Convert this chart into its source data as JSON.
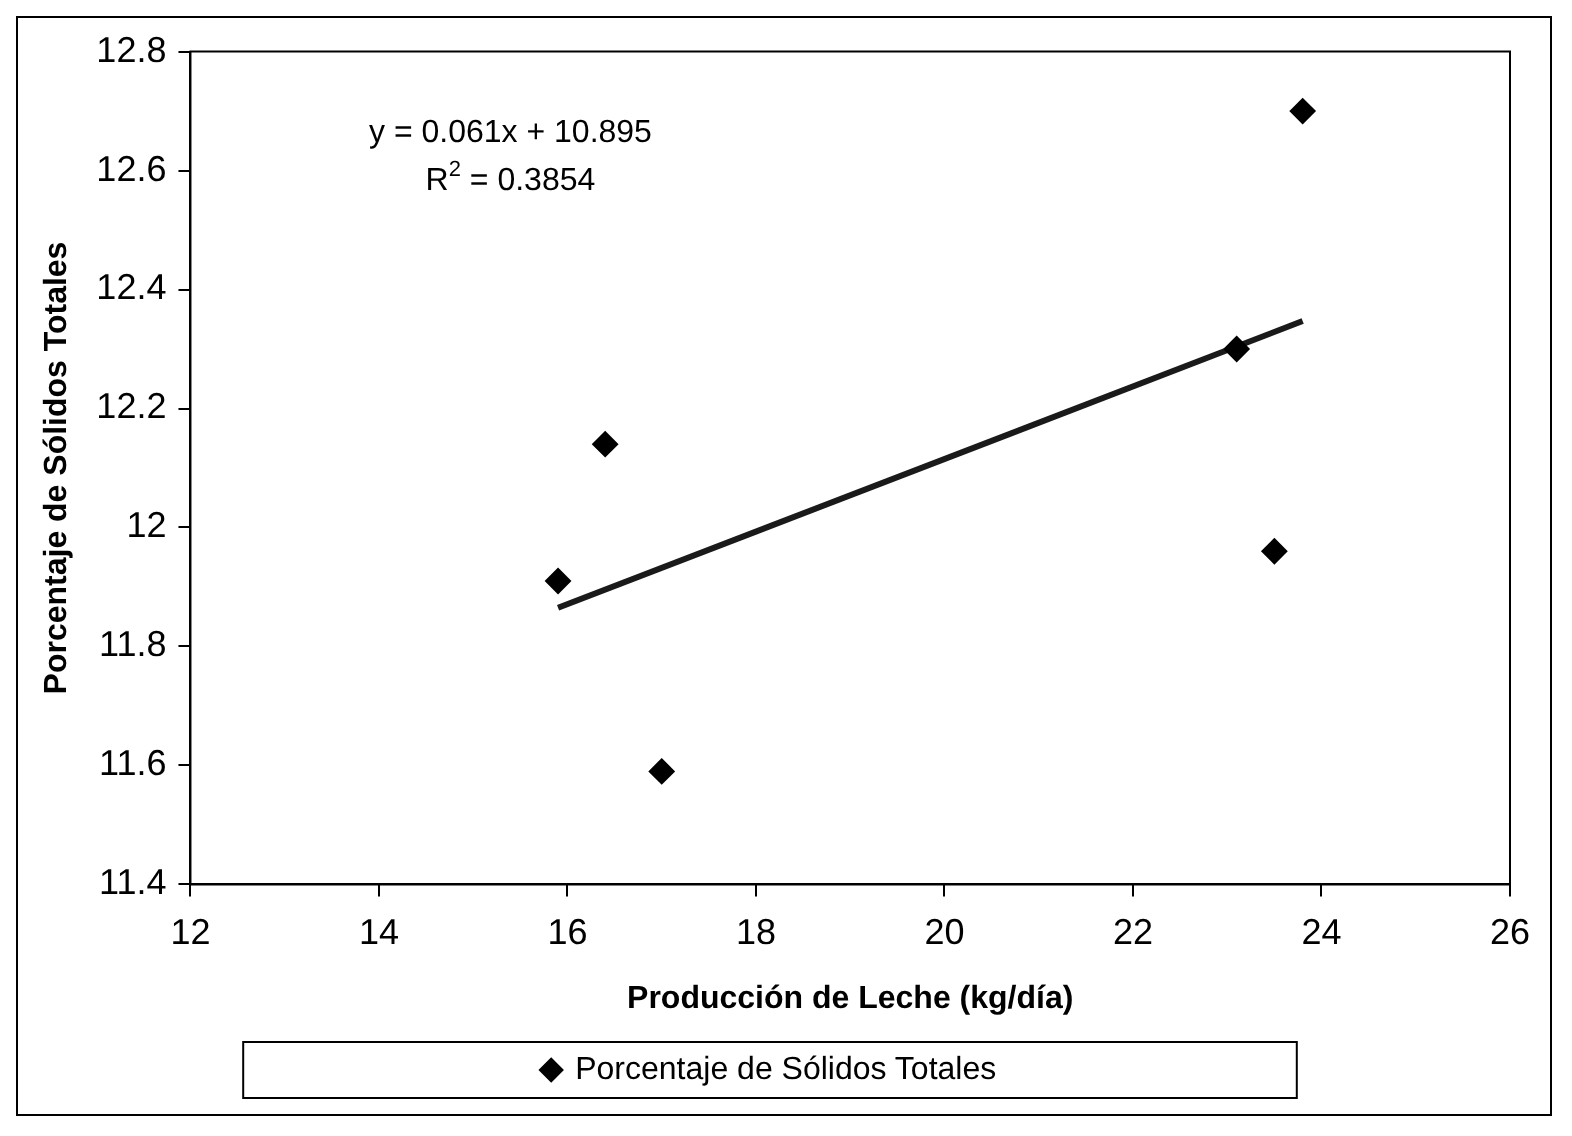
{
  "chart_data": {
    "type": "scatter",
    "xlabel": "Producción de Leche (kg/día)",
    "ylabel": "Porcentaje de Sólidos Totales",
    "series": [
      {
        "name": "Porcentaje de Sólidos Totales",
        "marker": "diamond",
        "color": "#000000",
        "x": [
          15.9,
          16.4,
          17.0,
          23.1,
          23.5,
          23.8
        ],
        "values": [
          11.91,
          12.14,
          11.59,
          12.3,
          11.96,
          12.7
        ]
      },
      {
        "type": "line",
        "marker": "none",
        "color": "#1a1a1a",
        "x": [
          15.9,
          23.8
        ],
        "values": [
          11.865,
          12.347
        ]
      }
    ],
    "annotations": [
      "y = 0.061x + 10.895",
      "R$^{2}$ = 0.3854"
    ],
    "xlim": [
      12,
      26
    ],
    "xticks": [
      12,
      14,
      16,
      18,
      20,
      22,
      24,
      26
    ],
    "ylim": [
      11.4,
      12.8
    ],
    "yticks": [
      11.4,
      11.6,
      11.8,
      12,
      12.2,
      12.4,
      12.6,
      12.8
    ],
    "grid": false,
    "legend": "bottom"
  }
}
